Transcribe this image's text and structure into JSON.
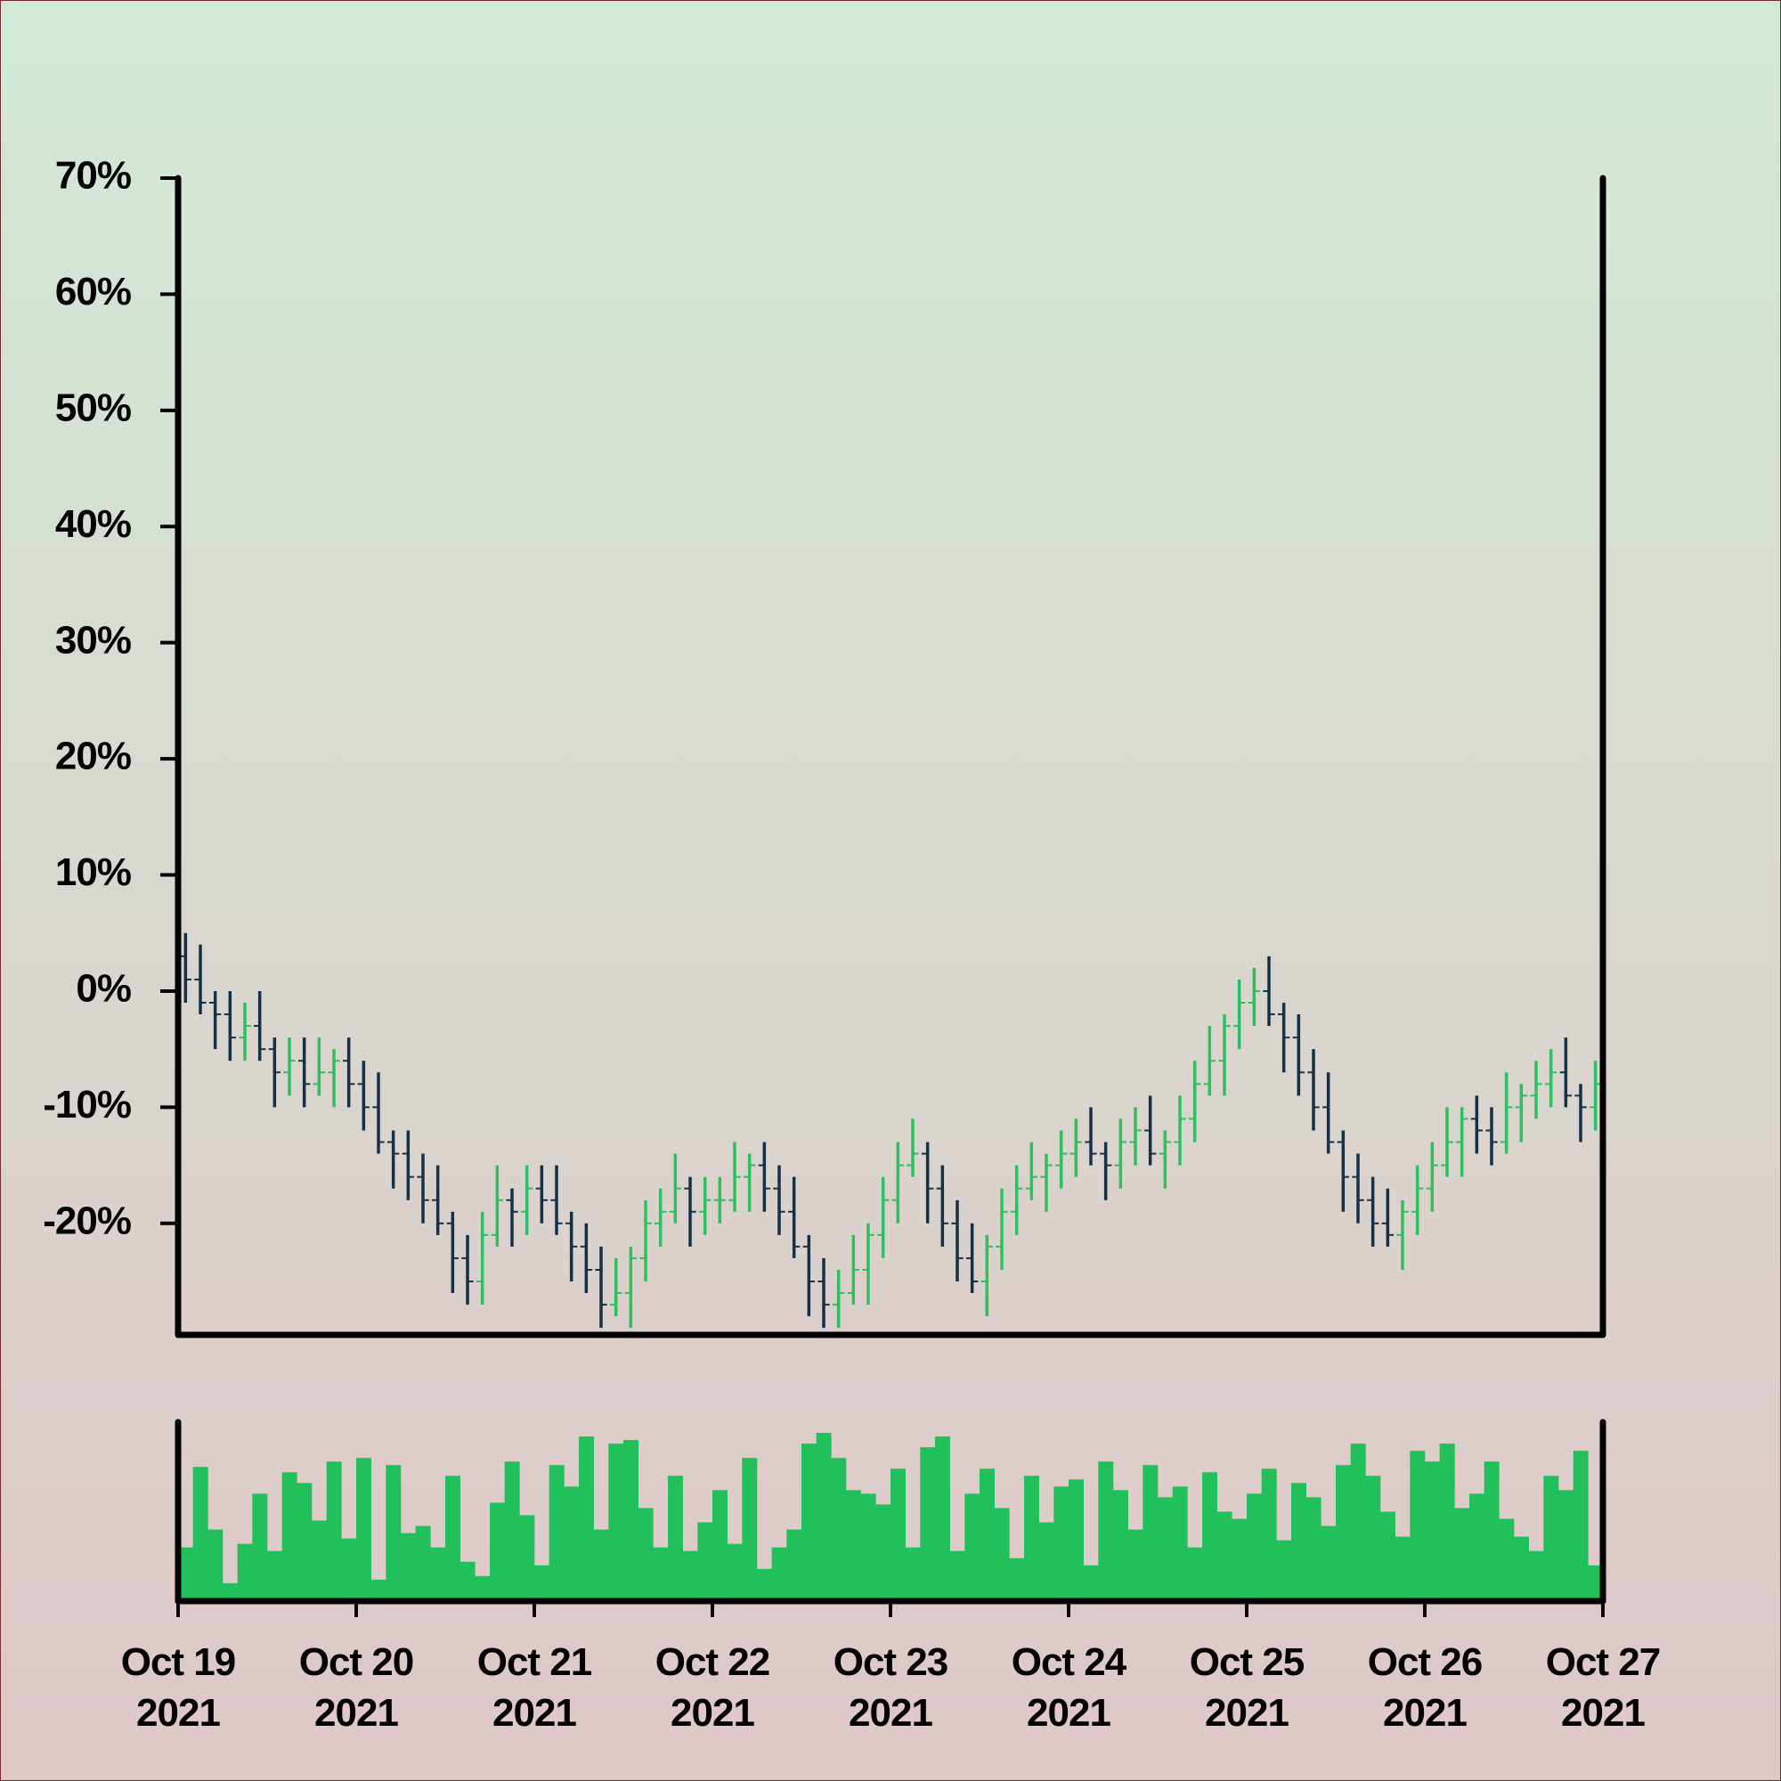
{
  "chart_data": {
    "type": "ohlc",
    "open": [
      3,
      1,
      -1,
      -2,
      -4,
      -3,
      -5,
      -7,
      -6,
      -8,
      -7,
      -6,
      -8,
      -10,
      -13,
      -14,
      -16,
      -18,
      -20,
      -23,
      -25,
      -21,
      -18,
      -19,
      -17,
      -18,
      -20,
      -22,
      -24,
      -27,
      -26,
      -23,
      -20,
      -19,
      -17,
      -19,
      -18,
      -18,
      -16,
      -15,
      -17,
      -19,
      -22,
      -25,
      -27,
      -26,
      -24,
      -21,
      -18,
      -15,
      -14,
      -17,
      -20,
      -23,
      -25,
      -22,
      -19,
      -17,
      -16,
      -15,
      -14,
      -13,
      -14,
      -15,
      -13,
      -12,
      -14,
      -13,
      -11,
      -8,
      -6,
      -3,
      -1,
      0,
      -2,
      -4,
      -7,
      -10,
      -13,
      -16,
      -18,
      -20,
      -21,
      -19,
      -17,
      -15,
      -13,
      -11,
      -12,
      -13,
      -10,
      -9,
      -8,
      -7,
      -9,
      -10
    ],
    "high": [
      5,
      4,
      0,
      0,
      -1,
      0,
      -4,
      -4,
      -4,
      -4,
      -5,
      -4,
      -6,
      -7,
      -12,
      -12,
      -14,
      -15,
      -19,
      -21,
      -19,
      -15,
      -17,
      -15,
      -15,
      -15,
      -19,
      -20,
      -22,
      -23,
      -22,
      -18,
      -17,
      -14,
      -16,
      -16,
      -16,
      -13,
      -14,
      -13,
      -15,
      -16,
      -21,
      -23,
      -24,
      -21,
      -20,
      -16,
      -13,
      -11,
      -13,
      -15,
      -18,
      -20,
      -21,
      -17,
      -15,
      -13,
      -14,
      -12,
      -11,
      -10,
      -13,
      -11,
      -10,
      -9,
      -12,
      -9,
      -6,
      -3,
      -2,
      1,
      2,
      3,
      -1,
      -2,
      -5,
      -7,
      -12,
      -14,
      -16,
      -17,
      -18,
      -15,
      -13,
      -10,
      -10,
      -9,
      -10,
      -7,
      -8,
      -6,
      -5,
      -4,
      -8,
      -6
    ],
    "low": [
      -1,
      -2,
      -5,
      -6,
      -6,
      -6,
      -10,
      -9,
      -10,
      -9,
      -10,
      -10,
      -12,
      -14,
      -17,
      -18,
      -20,
      -21,
      -26,
      -27,
      -27,
      -22,
      -22,
      -21,
      -20,
      -21,
      -25,
      -26,
      -29,
      -28,
      -29,
      -25,
      -22,
      -20,
      -22,
      -21,
      -20,
      -19,
      -19,
      -19,
      -21,
      -23,
      -28,
      -29,
      -29,
      -27,
      -27,
      -23,
      -20,
      -16,
      -20,
      -22,
      -25,
      -26,
      -28,
      -24,
      -21,
      -18,
      -19,
      -17,
      -16,
      -15,
      -18,
      -17,
      -15,
      -15,
      -17,
      -15,
      -13,
      -9,
      -9,
      -5,
      -3,
      -3,
      -7,
      -9,
      -12,
      -14,
      -19,
      -20,
      -22,
      -22,
      -24,
      -21,
      -19,
      -16,
      -16,
      -14,
      -15,
      -14,
      -13,
      -11,
      -10,
      -10,
      -13,
      -12
    ],
    "close": [
      1,
      -1,
      -2,
      -4,
      -3,
      -5,
      -7,
      -6,
      -8,
      -7,
      -6,
      -8,
      -10,
      -13,
      -14,
      -16,
      -18,
      -20,
      -23,
      -25,
      -21,
      -18,
      -19,
      -17,
      -18,
      -20,
      -22,
      -24,
      -27,
      -26,
      -23,
      -20,
      -19,
      -17,
      -19,
      -18,
      -18,
      -16,
      -15,
      -17,
      -19,
      -22,
      -25,
      -27,
      -26,
      -24,
      -21,
      -18,
      -15,
      -14,
      -17,
      -20,
      -23,
      -25,
      -22,
      -19,
      -17,
      -16,
      -15,
      -14,
      -13,
      -14,
      -15,
      -13,
      -12,
      -14,
      -13,
      -11,
      -8,
      -6,
      -3,
      -1,
      0,
      -2,
      -4,
      -7,
      -10,
      -13,
      -16,
      -18,
      -20,
      -21,
      -19,
      -17,
      -15,
      -13,
      -11,
      -12,
      -13,
      -10,
      -9,
      -8,
      -7,
      -9,
      -10,
      -8
    ],
    "volume": [
      30,
      75,
      40,
      10,
      32,
      60,
      28,
      72,
      66,
      45,
      78,
      35,
      80,
      12,
      76,
      38,
      42,
      30,
      70,
      22,
      14,
      55,
      78,
      48,
      20,
      76,
      64,
      92,
      40,
      88,
      90,
      52,
      30,
      70,
      28,
      44,
      62,
      32,
      80,
      18,
      30,
      40,
      88,
      94,
      80,
      62,
      60,
      54,
      74,
      30,
      86,
      92,
      28,
      60,
      74,
      52,
      24,
      70,
      44,
      64,
      68,
      20,
      78,
      62,
      40,
      76,
      58,
      64,
      30,
      72,
      50,
      46,
      60,
      74,
      34,
      66,
      58,
      42,
      76,
      88,
      70,
      50,
      36,
      84,
      78,
      88,
      52,
      60,
      78,
      46,
      36,
      28,
      70,
      62,
      84,
      20
    ],
    "up_color": "#2fbf5f",
    "down_color": "#163047",
    "volume_color": "#22c05a",
    "xlim": [
      0,
      96
    ],
    "xticks": [
      {
        "value": 0,
        "label": "Oct 19 2021"
      },
      {
        "value": 12,
        "label": "Oct 20 2021"
      },
      {
        "value": 24,
        "label": "Oct 21 2021"
      },
      {
        "value": 36,
        "label": "Oct 22 2021"
      },
      {
        "value": 48,
        "label": "Oct 23 2021"
      },
      {
        "value": 60,
        "label": "Oct 24 2021"
      },
      {
        "value": 72,
        "label": "Oct 25 2021"
      },
      {
        "value": 84,
        "label": "Oct 26 2021"
      },
      {
        "value": 96,
        "label": "Oct 27 2021"
      }
    ],
    "ylim": [
      -29.6,
      70
    ],
    "yticks": [
      {
        "value": -20,
        "label": "-20%"
      },
      {
        "value": -10,
        "label": "-10%"
      },
      {
        "value": 0,
        "label": "0%"
      },
      {
        "value": 10,
        "label": "10%"
      },
      {
        "value": 20,
        "label": "20%"
      },
      {
        "value": 30,
        "label": "30%"
      },
      {
        "value": 40,
        "label": "40%"
      },
      {
        "value": 50,
        "label": "50%"
      },
      {
        "value": 60,
        "label": "60%"
      },
      {
        "value": 70,
        "label": "70%"
      }
    ],
    "volume_ylim": [
      0,
      100
    ]
  }
}
